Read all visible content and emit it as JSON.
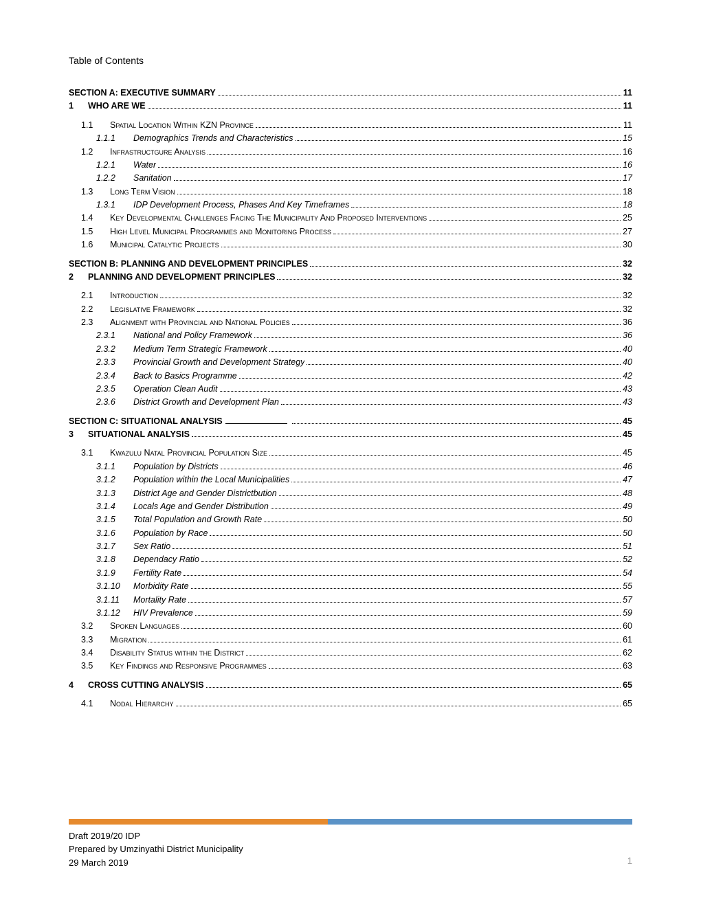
{
  "title": "Table of Contents",
  "footer": {
    "line1": "Draft 2019/20 IDP",
    "line2": "Prepared by Umzinyathi District Municipality",
    "line3": "29 March 2019",
    "page_number": "1"
  },
  "entries": [
    {
      "level": "section",
      "num": "",
      "text": "SECTION A: EXECUTIVE SUMMARY",
      "page": "11",
      "bold": true
    },
    {
      "level": 0,
      "num": "1",
      "text": "WHO ARE WE",
      "page": "11",
      "bold": true
    },
    {
      "spacer": true
    },
    {
      "level": 1,
      "num": "1.1",
      "text": "Spatial Location Within KZN Province",
      "page": "11",
      "smallcaps": true
    },
    {
      "level": 2,
      "num": "1.1.1",
      "text": "Demographics Trends and Characteristics",
      "page": "15",
      "italic": true
    },
    {
      "level": 1,
      "num": "1.2",
      "text": "Infrastructgure Analysis",
      "page": "16",
      "smallcaps": true
    },
    {
      "level": 2,
      "num": "1.2.1",
      "text": "Water",
      "page": "16",
      "italic": true
    },
    {
      "level": 2,
      "num": "1.2.2",
      "text": "Sanitation",
      "page": "17",
      "italic": true
    },
    {
      "level": 1,
      "num": "1.3",
      "text": "Long Term Vision",
      "page": "18",
      "smallcaps": true
    },
    {
      "level": 2,
      "num": "1.3.1",
      "text": "IDP Development Process, Phases And Key Timeframes",
      "page": "18",
      "italic": true
    },
    {
      "level": 1,
      "num": "1.4",
      "text": "Key Developmental Challenges Facing The Municipality And Proposed Interventions",
      "page": "25",
      "smallcaps": true
    },
    {
      "level": 1,
      "num": "1.5",
      "text": "High Level Municipal Programmes and Monitoring Process",
      "page": "27",
      "smallcaps": true
    },
    {
      "level": 1,
      "num": "1.6",
      "text": "Municipal Catalytic Projects",
      "page": "30",
      "smallcaps": true
    },
    {
      "spacer": true
    },
    {
      "level": "section",
      "num": "",
      "text": "SECTION B: PLANNING AND DEVELOPMENT PRINCIPLES",
      "page": "32",
      "bold": true
    },
    {
      "level": 0,
      "num": "2",
      "text": "PLANNING AND DEVELOPMENT PRINCIPLES",
      "page": "32",
      "bold": true
    },
    {
      "spacer": true
    },
    {
      "level": 1,
      "num": "2.1",
      "text": "Introduction",
      "page": "32",
      "smallcaps": true
    },
    {
      "level": 1,
      "num": "2.2",
      "text": "Legislative Framework",
      "page": "32",
      "smallcaps": true
    },
    {
      "level": 1,
      "num": "2.3",
      "text": "Alignment with Provincial and National Policies",
      "page": "36",
      "smallcaps": true
    },
    {
      "level": 2,
      "num": "2.3.1",
      "text": "National and Policy Framework",
      "page": "36",
      "italic": true
    },
    {
      "level": 2,
      "num": "2.3.2",
      "text": "Medium Term Strategic Framework",
      "page": "40",
      "italic": true
    },
    {
      "level": 2,
      "num": "2.3.3",
      "text": "Provincial Growth and Development Strategy",
      "page": "40",
      "italic": true
    },
    {
      "level": 2,
      "num": "2.3.4",
      "text": "Back to Basics Programme",
      "page": "42",
      "italic": true
    },
    {
      "level": 2,
      "num": "2.3.5",
      "text": "Operation Clean Audit",
      "page": "43",
      "italic": true
    },
    {
      "level": 2,
      "num": "2.3.6",
      "text": "District Growth and Development Plan",
      "page": "43",
      "italic": true
    },
    {
      "spacer": true
    },
    {
      "level": "section",
      "num": "",
      "text": "SECTION C: SITUATIONAL ANALYSIS",
      "page": "45",
      "bold": true,
      "underline_gap": true
    },
    {
      "level": 0,
      "num": "3",
      "text": "SITUATIONAL ANALYSIS",
      "page": "45",
      "bold": true
    },
    {
      "spacer": true
    },
    {
      "level": 1,
      "num": "3.1",
      "text": "Kwazulu Natal Provincial Population Size",
      "page": "45",
      "smallcaps": true
    },
    {
      "level": 2,
      "num": "3.1.1",
      "text": "Population by Districts",
      "page": "46",
      "italic": true
    },
    {
      "level": 2,
      "num": "3.1.2",
      "text": "Population within the Local Municipalities",
      "page": "47",
      "italic": true
    },
    {
      "level": 2,
      "num": "3.1.3",
      "text": "District Age and Gender Districtbution",
      "page": "48",
      "italic": true
    },
    {
      "level": 2,
      "num": "3.1.4",
      "text": "Locals Age and Gender Distribution",
      "page": "49",
      "italic": true
    },
    {
      "level": 2,
      "num": "3.1.5",
      "text": "Total Population and Growth Rate",
      "page": "50",
      "italic": true
    },
    {
      "level": 2,
      "num": "3.1.6",
      "text": "Population by Race",
      "page": "50",
      "italic": true
    },
    {
      "level": 2,
      "num": "3.1.7",
      "text": "Sex Ratio",
      "page": "51",
      "italic": true
    },
    {
      "level": 2,
      "num": "3.1.8",
      "text": "Dependacy Ratio",
      "page": "52",
      "italic": true
    },
    {
      "level": 2,
      "num": "3.1.9",
      "text": "Fertility Rate",
      "page": "54",
      "italic": true
    },
    {
      "level": 2,
      "num": "3.1.10",
      "text": "Morbidity Rate",
      "page": "55",
      "italic": true
    },
    {
      "level": 2,
      "num": "3.1.11",
      "text": "Mortality Rate",
      "page": "57",
      "italic": true
    },
    {
      "level": 2,
      "num": "3.1.12",
      "text": "HIV Prevalence",
      "page": "59",
      "italic": true
    },
    {
      "level": 1,
      "num": "3.2",
      "text": "Spoken Languages",
      "page": "60",
      "smallcaps": true
    },
    {
      "level": 1,
      "num": "3.3",
      "text": "Migration",
      "page": "61",
      "smallcaps": true
    },
    {
      "level": 1,
      "num": "3.4",
      "text": "Disability Status within the District",
      "page": "62",
      "smallcaps": true
    },
    {
      "level": 1,
      "num": "3.5",
      "text": "Key Findings and Responsive Programmes",
      "page": "63",
      "smallcaps": true
    },
    {
      "spacer": true
    },
    {
      "level": 0,
      "num": "4",
      "text": "CROSS CUTTING ANALYSIS",
      "page": "65",
      "bold": true
    },
    {
      "spacer": true
    },
    {
      "level": 1,
      "num": "4.1",
      "text": "Nodal Hierarchy",
      "page": "65",
      "smallcaps": true
    }
  ]
}
